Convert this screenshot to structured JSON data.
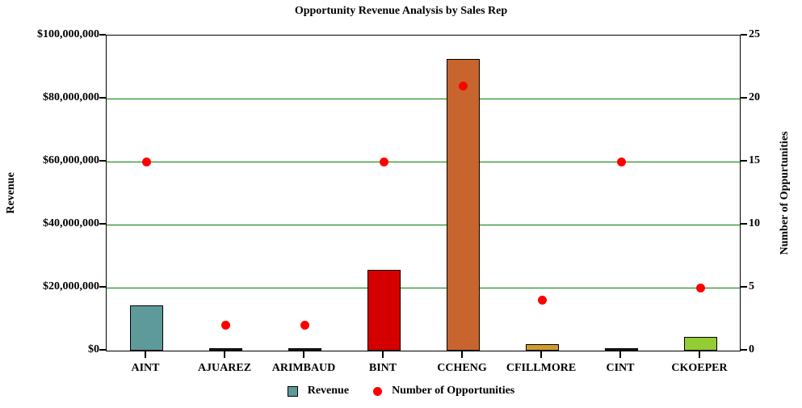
{
  "chart_data": {
    "type": "bar",
    "subtype": "combo-bar-and-points",
    "title": "Opportunity Revenue Analysis by Sales Rep",
    "categories": [
      "AINT",
      "AJUAREZ",
      "ARIMBAUD",
      "BINT",
      "CCHENG",
      "CFILLMORE",
      "CINT",
      "CKOEPER"
    ],
    "series": [
      {
        "name": "Revenue",
        "type": "bar",
        "axis": "left",
        "values": [
          14400000,
          300000,
          300000,
          25600000,
          92500000,
          2000000,
          250000,
          4400000
        ],
        "bar_colors": [
          "#5f9a9b",
          "#1a1a1a",
          "#1a1a1a",
          "#d40000",
          "#c8642d",
          "#d09c2e",
          "#1a1a1a",
          "#94cc34"
        ]
      },
      {
        "name": "Number of Opportunities",
        "type": "point",
        "axis": "right",
        "color": "#ff0000",
        "values": [
          15,
          2,
          2,
          15,
          21,
          4,
          15,
          5
        ]
      }
    ],
    "left_axis": {
      "label": "Revenue",
      "min": 0,
      "max": 100000000,
      "tick_interval": 20000000,
      "tick_labels": [
        "$0",
        "$20,000,000",
        "$40,000,000",
        "$60,000,000",
        "$80,000,000",
        "$100,000,000"
      ]
    },
    "right_axis": {
      "label": "Number of Oppurtunities",
      "min": 0,
      "max": 25,
      "tick_interval": 5,
      "tick_labels": [
        "0",
        "5",
        "10",
        "15",
        "20",
        "25"
      ]
    },
    "grid": {
      "on": true,
      "color": "#008000"
    },
    "legend": {
      "position": "bottom-center",
      "items": [
        {
          "label": "Revenue",
          "swatch": "square",
          "color": "#5f9a9b"
        },
        {
          "label": "Number of Opportunities",
          "swatch": "dot",
          "color": "#ff0000"
        }
      ]
    }
  }
}
